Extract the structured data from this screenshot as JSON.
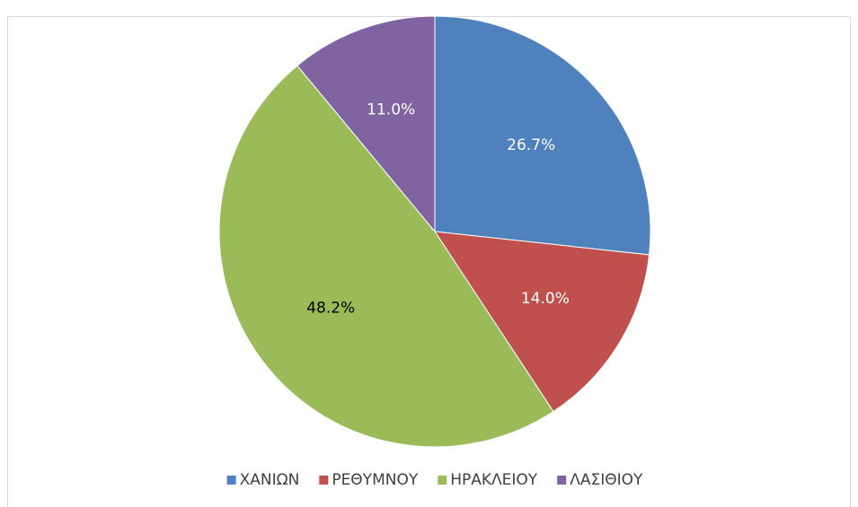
{
  "chart_data": {
    "type": "pie",
    "categories": [
      "ΧΑΝΙΩΝ",
      "ΡΕΘΥΜΝΟΥ",
      "ΗΡΑΚΛΕΙΟΥ",
      "ΛΑΣΙΘΙΟΥ"
    ],
    "values": [
      26.7,
      14.0,
      48.2,
      11.0
    ],
    "value_labels": [
      "26.7%",
      "14.0%",
      "48.2%",
      "11.0%"
    ],
    "colors": [
      "#4f81bd",
      "#c0504d",
      "#9bbb59",
      "#8064a2"
    ],
    "label_colors": [
      "#ffffff",
      "#ffffff",
      "#000000",
      "#ffffff"
    ],
    "legend": "bottom"
  }
}
